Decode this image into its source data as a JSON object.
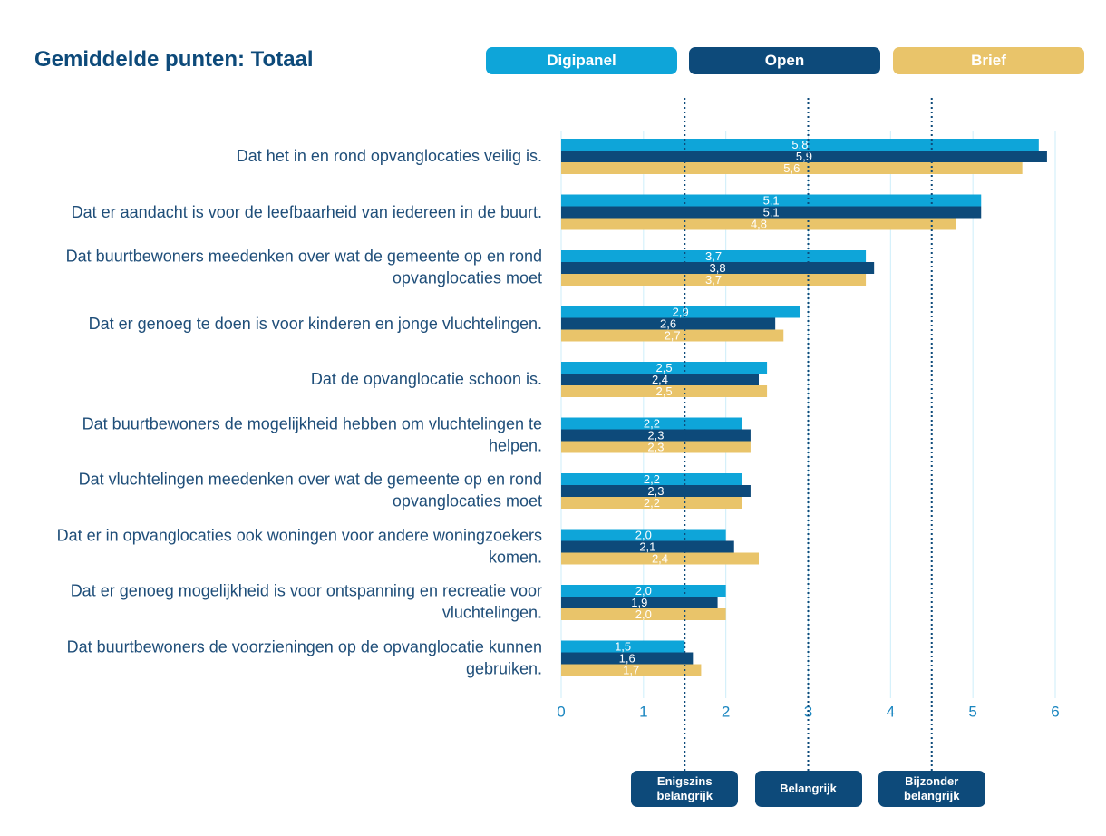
{
  "chart_data": {
    "type": "hbar",
    "title": "Gemiddelde punten: Totaal",
    "categories": [
      "Dat het in en rond opvanglocaties veilig is.",
      "Dat er aandacht is voor de leefbaarheid van iedereen in de buurt.",
      "Dat buurtbewoners meedenken over wat de gemeente op en rond opvanglocaties moet",
      "Dat er genoeg te doen is voor kinderen en jonge vluchtelingen.",
      "Dat de opvanglocatie schoon is.",
      "Dat buurtbewoners de mogelijkheid hebben om vluchtelingen te helpen.",
      "Dat vluchtelingen meedenken over wat de gemeente op en rond opvanglocaties moet",
      "Dat er in opvanglocaties ook woningen voor andere woningzoekers komen.",
      "Dat er genoeg mogelijkheid is voor ontspanning en recreatie voor vluchtelingen.",
      "Dat buurtbewoners de voorzieningen op de opvanglocatie kunnen gebruiken."
    ],
    "series": [
      {
        "name": "Digipanel",
        "color": "#0ea5d9",
        "values": [
          5.8,
          5.1,
          3.7,
          2.9,
          2.5,
          2.2,
          2.2,
          2.0,
          2.0,
          1.5
        ],
        "value_labels": [
          "5,8",
          "5,1",
          "3,7",
          "2,9",
          "2,5",
          "2,2",
          "2,2",
          "2,0",
          "2,0",
          "1,5"
        ]
      },
      {
        "name": "Open",
        "color": "#0d4a7a",
        "values": [
          5.9,
          5.1,
          3.8,
          2.6,
          2.4,
          2.3,
          2.3,
          2.1,
          1.9,
          1.6
        ],
        "value_labels": [
          "5,9",
          "5,1",
          "3,8",
          "2,6",
          "2,4",
          "2,3",
          "2,3",
          "2,1",
          "1,9",
          "1,6"
        ]
      },
      {
        "name": "Brief",
        "color": "#e9c46a",
        "values": [
          5.6,
          4.8,
          3.7,
          2.7,
          2.5,
          2.3,
          2.2,
          2.4,
          2.0,
          1.7
        ],
        "value_labels": [
          "5,6",
          "4,8",
          "3,7",
          "2,7",
          "2,5",
          "2,3",
          "2,2",
          "2,4",
          "2,0",
          "1,7"
        ]
      }
    ],
    "xlim": [
      0,
      6
    ],
    "xticks": [
      0,
      1,
      2,
      3,
      4,
      5,
      6
    ],
    "grid": true,
    "reference_lines": [
      {
        "value": 1.5,
        "label": "Enigszins belangrijk"
      },
      {
        "value": 3,
        "label": "Belangrijk"
      },
      {
        "value": 4.5,
        "label": "Bijzonder belangrijk"
      }
    ]
  }
}
